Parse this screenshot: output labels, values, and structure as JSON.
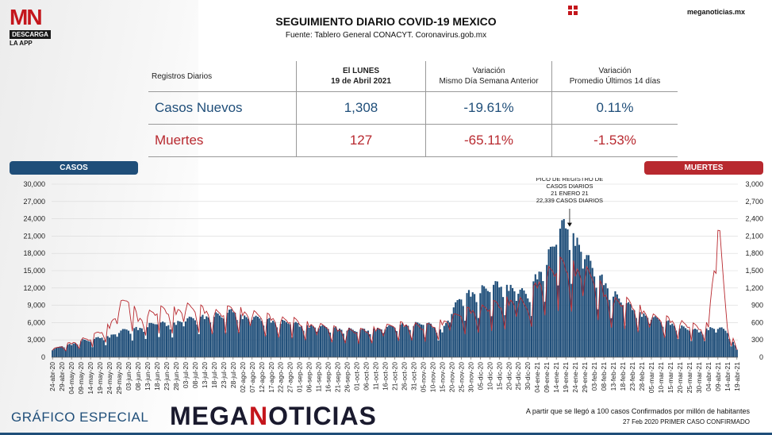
{
  "header": {
    "logo_mn": "MN",
    "logo_descarga": "DESCARGA",
    "logo_app": "LA APP",
    "title": "SEGUIMIENTO DIARIO COVID-19 MEXICO",
    "subtitle": "Fuente: Tablero General CONACYT. Coronavirus.gob.mx",
    "site": "meganoticias.mx"
  },
  "stats": {
    "col0": "Registros Diarios",
    "col1_line1": "El LUNES",
    "col1_line2": "19 de Abril 2021",
    "col2_line1": "Variación",
    "col2_line2": "Mismo Día Semana Anterior",
    "col3_line1": "Variación",
    "col3_line2": "Promedio Últimos 14 días",
    "cases": {
      "label": "Casos Nuevos",
      "value": "1,308",
      "var_week": "-19.61%",
      "var_14": "0.11%"
    },
    "deaths": {
      "label": "Muertes",
      "value": "127",
      "var_week": "-65.11%",
      "var_14": "-1.53%"
    }
  },
  "tags": {
    "cases": "CASOS",
    "deaths": "MUERTES"
  },
  "annotation": {
    "line1": "PICO DE REGISTRO DE",
    "line2": "CASOS DIARIOS",
    "line3": "21 ENERO 21",
    "line4": "22,339 CASOS DIARIOS"
  },
  "footer": {
    "left": "GRÁFICO ESPECIAL",
    "brand_a": "MEGA",
    "brand_b": "N",
    "brand_c": "OTICIAS",
    "note1": "A partir que se llegó a 100 casos Confirmados por millón de habitantes",
    "note2": "27 Feb 2020 PRIMER CASO CONFIRMADO"
  },
  "colors": {
    "cases": "#1f4e79",
    "deaths": "#b8292f"
  },
  "chart_data": {
    "type": "bar",
    "title": "",
    "xlabel": "",
    "ylabel_left": "",
    "ylabel_right": "",
    "ylim_left": [
      0,
      30000
    ],
    "ylim_right": [
      0,
      3000
    ],
    "yticks_left": [
      "0",
      "3,000",
      "6,000",
      "9,000",
      "12,000",
      "15,000",
      "18,000",
      "21,000",
      "24,000",
      "27,000",
      "30,000"
    ],
    "yticks_right": [
      "0",
      "300",
      "600",
      "900",
      "1,200",
      "1,500",
      "1,800",
      "2,100",
      "2,400",
      "2,700",
      "3,000"
    ],
    "x_start": "2020-04-24",
    "x_end": "2021-04-19",
    "x_ticks": [
      "24-abr-20",
      "29-abr-20",
      "04-may-20",
      "09-may-20",
      "14-may-20",
      "19-may-20",
      "24-may-20",
      "29-may-20",
      "03-jun-20",
      "08-jun-20",
      "13-jun-20",
      "18-jun-20",
      "23-jun-20",
      "28-jun-20",
      "03-jul-20",
      "08-jul-20",
      "13-jul-20",
      "18-jul-20",
      "23-jul-20",
      "28-jul-20",
      "02-ago-20",
      "07-ago-20",
      "12-ago-20",
      "17-ago-20",
      "22-ago-20",
      "27-ago-20",
      "01-sep-20",
      "06-sep-20",
      "11-sep-20",
      "16-sep-20",
      "21-sep-20",
      "26-sep-20",
      "01-oct-20",
      "06-oct-20",
      "11-oct-20",
      "16-oct-20",
      "21-oct-20",
      "26-oct-20",
      "31-oct-20",
      "05-nov-20",
      "10-nov-20",
      "15-nov-20",
      "20-nov-20",
      "25-nov-20",
      "30-nov-20",
      "05-dic-20",
      "10-dic-20",
      "15-dic-20",
      "20-dic-20",
      "25-dic-20",
      "30-dic-20",
      "04-ene-21",
      "09-ene-21",
      "14-ene-21",
      "19-ene-21",
      "24-ene-21",
      "29-ene-21",
      "03-feb-21",
      "08-feb-21",
      "13-feb-21",
      "18-feb-21",
      "23-feb-21",
      "28-feb-21",
      "05-mar-21",
      "10-mar-21",
      "15-mar-21",
      "20-mar-21",
      "25-mar-21",
      "30-mar-21",
      "04-abr-21",
      "09-abr-21",
      "14-abr-21",
      "19-abr-21"
    ],
    "series": [
      {
        "axis": "left",
        "style": "bars",
        "values_5day": [
          1200,
          1900,
          2100,
          2800,
          2700,
          3300,
          3400,
          4200,
          4600,
          4700,
          5200,
          5700,
          5400,
          5600,
          6200,
          6400,
          6600,
          7000,
          6700,
          7800,
          6600,
          6500,
          6300,
          6000,
          5800,
          5700,
          5300,
          5100,
          5000,
          4900,
          4700,
          4600,
          4400,
          4500,
          4600,
          4800,
          5100,
          5300,
          5400,
          5600,
          5200,
          4300,
          7500,
          10000,
          10500,
          11100,
          11300,
          12100,
          11500,
          11000,
          10200,
          13500,
          16000,
          19500,
          22339,
          19300,
          17000,
          14000,
          12500,
          10500,
          9000,
          8200,
          7000,
          6500,
          6100,
          5600,
          5000,
          4600,
          4300,
          4700,
          4900,
          4200,
          1308
        ]
      },
      {
        "axis": "right",
        "style": "line",
        "values_5day": [
          120,
          180,
          230,
          290,
          300,
          420,
          500,
          800,
          950,
          620,
          700,
          750,
          760,
          740,
          800,
          780,
          760,
          720,
          720,
          800,
          720,
          690,
          660,
          640,
          610,
          600,
          560,
          520,
          500,
          480,
          450,
          440,
          420,
          430,
          450,
          480,
          510,
          530,
          530,
          480,
          520,
          560,
          620,
          700,
          760,
          780,
          820,
          860,
          900,
          900,
          800,
          1200,
          1350,
          1450,
          1500,
          1400,
          1350,
          1250,
          1050,
          900,
          900,
          850,
          750,
          640,
          620,
          600,
          560,
          520,
          480,
          520,
          2200,
          500,
          127
        ]
      }
    ],
    "annotation_date": "2021-01-21",
    "annotation_value": 22339
  }
}
